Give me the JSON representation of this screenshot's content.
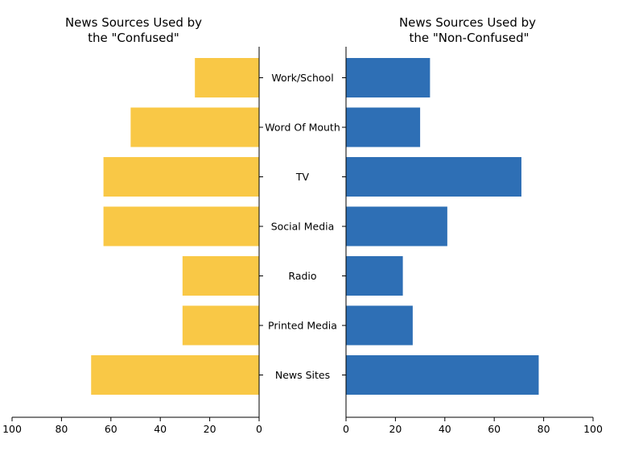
{
  "chart_data": {
    "type": "bar",
    "orientation": "horizontal",
    "layout": "back-to-back",
    "categories": [
      "Work/School",
      "Word Of Mouth",
      "TV",
      "Social Media",
      "Radio",
      "Printed Media",
      "News Sites"
    ],
    "panels": [
      {
        "title_lines": [
          "News Sources Used by",
          "the \"Confused\""
        ],
        "values": [
          26,
          52,
          63,
          63,
          31,
          31,
          68
        ],
        "xlim": [
          100,
          0
        ],
        "xticks": [
          "100",
          "80",
          "60",
          "40",
          "20",
          "0"
        ],
        "color": "#F9C846"
      },
      {
        "title_lines": [
          "News Sources Used by",
          "the \"Non-Confused\""
        ],
        "values": [
          34,
          30,
          71,
          41,
          23,
          27,
          78
        ],
        "xlim": [
          0,
          100
        ],
        "xticks": [
          "0",
          "20",
          "40",
          "60",
          "80",
          "100"
        ],
        "color": "#2E6FB5"
      }
    ],
    "grid": false,
    "legend": "none"
  }
}
